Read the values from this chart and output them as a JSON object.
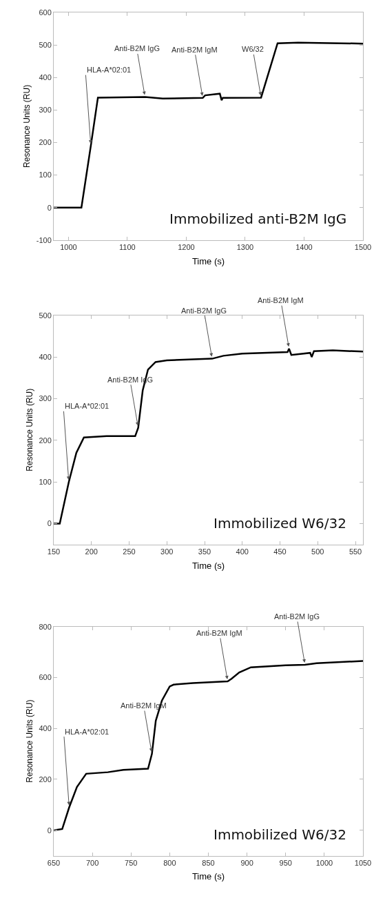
{
  "chart_data": [
    {
      "type": "line",
      "title": "Immobilized anti-B2M IgG",
      "xlabel": "Time (s)",
      "ylabel": "Resonance Units (RU)",
      "xlim": [
        975,
        1500
      ],
      "ylim": [
        -100,
        600
      ],
      "xticks": [
        1000,
        1100,
        1200,
        1300,
        1400,
        1500
      ],
      "yticks": [
        -100,
        0,
        100,
        200,
        300,
        400,
        500,
        600
      ],
      "marker": "none",
      "series": [
        {
          "color": "#000000",
          "x": [
            975,
            1022,
            1038,
            1050,
            1130,
            1160,
            1228,
            1232,
            1257,
            1260,
            1262,
            1327,
            1355,
            1390,
            1500
          ],
          "values": [
            0,
            0,
            190,
            338,
            340,
            335,
            337,
            345,
            350,
            330,
            337,
            338,
            505,
            507,
            504
          ]
        }
      ],
      "annotations": [
        {
          "text": "HLA-A*02:01",
          "x": 1038,
          "y": 190
        },
        {
          "text": "Anti-B2M IgG",
          "x": 1130,
          "y": 340
        },
        {
          "text": "Anti-B2M IgM",
          "x": 1228,
          "y": 337
        },
        {
          "text": "W6/32",
          "x": 1327,
          "y": 338
        }
      ]
    },
    {
      "type": "line",
      "title": "Immobilized W6/32",
      "xlabel": "Time (s)",
      "ylabel": "Resonance Units (RU)",
      "xlim": [
        150,
        560
      ],
      "ylim": [
        -50,
        500
      ],
      "xticks": [
        150,
        200,
        250,
        300,
        350,
        400,
        450,
        500,
        550
      ],
      "yticks": [
        0,
        100,
        200,
        300,
        400,
        500
      ],
      "marker": "none",
      "series": [
        {
          "color": "#000000",
          "x": [
            150,
            158,
            170,
            180,
            190,
            220,
            258,
            262,
            268,
            275,
            285,
            300,
            360,
            375,
            400,
            460,
            462,
            465,
            490,
            492,
            495,
            520,
            560
          ],
          "values": [
            0,
            0,
            100,
            170,
            207,
            210,
            210,
            230,
            320,
            370,
            388,
            392,
            396,
            403,
            408,
            412,
            420,
            405,
            410,
            400,
            414,
            416,
            413
          ]
        }
      ],
      "annotations": [
        {
          "text": "HLA-A*02:01",
          "x": 170,
          "y": 100
        },
        {
          "text": "Anti-B2M IgG",
          "x": 262,
          "y": 230
        },
        {
          "text": "Anti-B2M IgG",
          "x": 360,
          "y": 396
        },
        {
          "text": "Anti-B2M IgM",
          "x": 462,
          "y": 420
        }
      ]
    },
    {
      "type": "line",
      "title": "Immobilized W6/32",
      "xlabel": "Time (s)",
      "ylabel": "Resonance Units (RU)",
      "xlim": [
        650,
        1050
      ],
      "ylim": [
        -100,
        800
      ],
      "xticks": [
        650,
        700,
        750,
        800,
        850,
        900,
        950,
        1000,
        1050
      ],
      "yticks": [
        0,
        200,
        400,
        600,
        800
      ],
      "marker": "none",
      "series": [
        {
          "color": "#000000",
          "x": [
            650,
            661,
            670,
            680,
            692,
            720,
            740,
            772,
            777,
            782,
            790,
            800,
            805,
            830,
            875,
            880,
            890,
            905,
            950,
            975,
            990,
            1050
          ],
          "values": [
            0,
            5,
            90,
            170,
            222,
            228,
            237,
            242,
            300,
            430,
            510,
            565,
            572,
            578,
            585,
            595,
            620,
            640,
            648,
            650,
            656,
            665
          ]
        }
      ],
      "annotations": [
        {
          "text": "HLA-A*02:01",
          "x": 670,
          "y": 90
        },
        {
          "text": "Anti-B2M IgM",
          "x": 777,
          "y": 300
        },
        {
          "text": "Anti-B2M IgM",
          "x": 875,
          "y": 585
        },
        {
          "text": "Anti-B2M IgG",
          "x": 975,
          "y": 650
        }
      ]
    }
  ]
}
